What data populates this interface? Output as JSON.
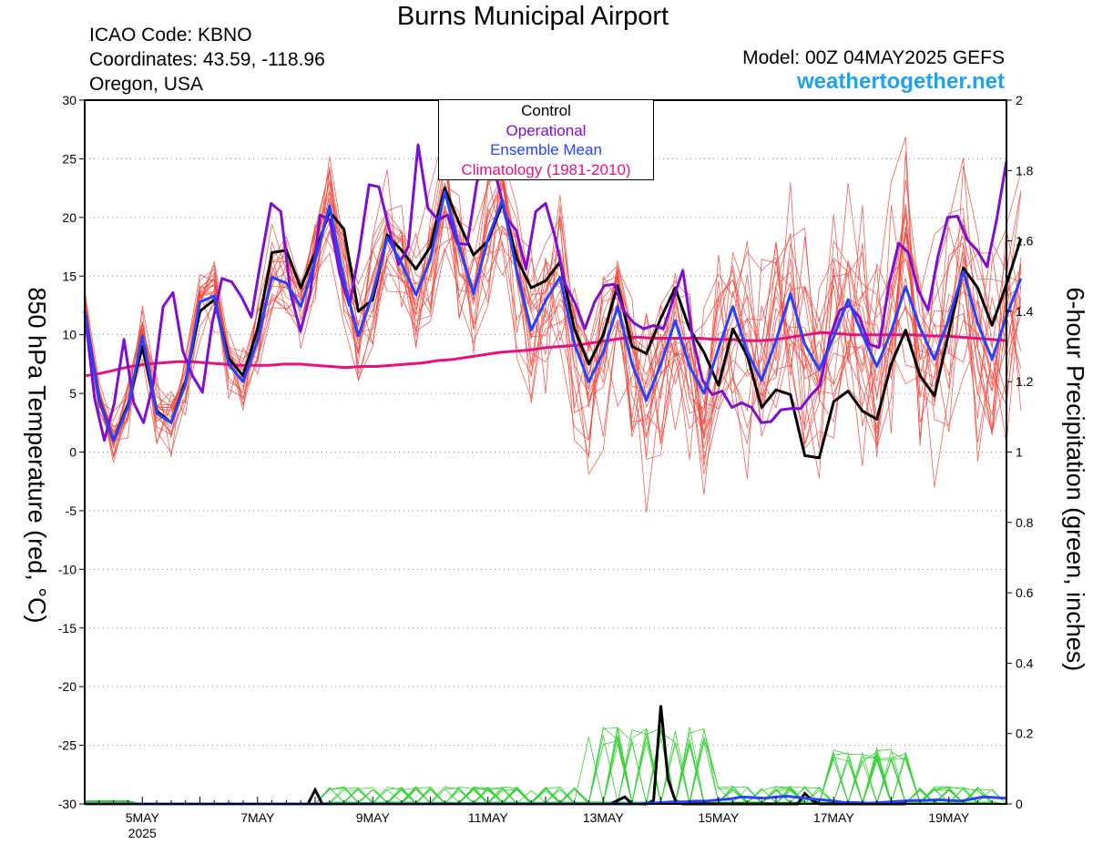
{
  "header": {
    "title": "Burns Municipal Airport",
    "icao": "ICAO Code: KBNO",
    "coordinates": "Coordinates: 43.59, -118.96",
    "location": "Oregon, USA",
    "model": "Model: 00Z 04MAY2025 GEFS",
    "site": "weathertogether.net"
  },
  "colors": {
    "control": "#000000",
    "operational": "#7f0ed2",
    "ensemble_mean": "#2442ff",
    "climatology": "#e8107f",
    "members_temp": "#f0453a",
    "members_precip": "#35d135",
    "site": "#1aa3f0"
  },
  "chart_data": {
    "type": "line",
    "title": "Burns Municipal Airport",
    "ylabel_left": "850 hPa Temperature (red, °C)",
    "ylabel_right": "6-hour Precipitation (green, inches)",
    "ylim_left": [
      -30,
      30
    ],
    "ylim_right": [
      0,
      2
    ],
    "yticks_left": [
      30,
      25,
      20,
      15,
      10,
      5,
      0,
      -5,
      -10,
      -15,
      -20,
      -25,
      -30
    ],
    "yticks_right": [
      "2",
      "1.8",
      "1.6",
      "1.4",
      "1.2",
      "1",
      "0.8",
      "0.6",
      "0.4",
      "0.2",
      "0"
    ],
    "xlim_days": [
      4.0,
      20.0
    ],
    "xticks": [
      {
        "day": 5,
        "label": "5MAY",
        "sub": "2025"
      },
      {
        "day": 7,
        "label": "7MAY",
        "sub": ""
      },
      {
        "day": 9,
        "label": "9MAY",
        "sub": ""
      },
      {
        "day": 11,
        "label": "11MAY",
        "sub": ""
      },
      {
        "day": 13,
        "label": "13MAY",
        "sub": ""
      },
      {
        "day": 15,
        "label": "15MAY",
        "sub": ""
      },
      {
        "day": 17,
        "label": "17MAY",
        "sub": ""
      },
      {
        "day": 19,
        "label": "19MAY",
        "sub": ""
      }
    ],
    "grid": "horizontal dotted",
    "legend": "top-center",
    "step_days": 0.25,
    "start_day": 4.0,
    "series": [
      {
        "name": "Control",
        "key": "control",
        "values": [
          12,
          4.5,
          1,
          4,
          9,
          3.5,
          2.5,
          6,
          12,
          13,
          8,
          6.5,
          10.5,
          17,
          17.2,
          14,
          17,
          20.5,
          19,
          12,
          13,
          18.5,
          17.2,
          15.6,
          17.5,
          22.5,
          19.5,
          16.8,
          18,
          21.2,
          16.5,
          14,
          14.6,
          16.2,
          10.5,
          7.5,
          10,
          14.2,
          9,
          8.4,
          11.4,
          14,
          10.5,
          8.5,
          5.7,
          10.5,
          8.2,
          3.8,
          5.3,
          4.9,
          -0.3,
          -0.5,
          4.3,
          5.2,
          3.5,
          2.8,
          7.5,
          10.4,
          6.5,
          4.8,
          10.2,
          15.7,
          14,
          10.8,
          14.3,
          18.2
        ]
      },
      {
        "name": "Operational",
        "key": "operational",
        "values": [
          12,
          4.6,
          1,
          4.1,
          9.6,
          4.2,
          2.5,
          5.9,
          12.4,
          13.6,
          8.6,
          6.5,
          5.1,
          11,
          14.8,
          14.5,
          13.2,
          11.5,
          16.5,
          21.2,
          20.5,
          13.5,
          10.3,
          13.5,
          20.2,
          19.8,
          15.2,
          12.5,
          17.1,
          22.8,
          22.6,
          19.2,
          16,
          17.5,
          26.2,
          20.8,
          19.8,
          20.2,
          17.8,
          17.7,
          23,
          24.9,
          23.3,
          20,
          18.9,
          15.6,
          20.5,
          21.2,
          18.2,
          14.3,
          12.7,
          10.5,
          12.8,
          14.2,
          14.3,
          12,
          11,
          10.5,
          10.8,
          10.5,
          13,
          15.5,
          9.7,
          6.1,
          4.9,
          5.2,
          3.8,
          4.2,
          3.8,
          2.5,
          2.6,
          3.6,
          3.7,
          3.7,
          4.8,
          5.7,
          9.8,
          12.1,
          12.5,
          11.5,
          9.2,
          8.9,
          14.2,
          17.8,
          17,
          13.8,
          12.1,
          16.6,
          20,
          20.1,
          18.1,
          17.2,
          15.8,
          19.8,
          24.8
        ]
      },
      {
        "name": "Ensemble Mean",
        "key": "ensemble_mean",
        "values": [
          12,
          4.4,
          1,
          3.8,
          9.9,
          3.3,
          2.5,
          5.8,
          12.8,
          13.3,
          7.5,
          6,
          9.5,
          14.9,
          14.4,
          12.4,
          16.3,
          21,
          14.6,
          9.9,
          13.5,
          18.3,
          16.1,
          13.4,
          16.4,
          22.2,
          17.5,
          13.5,
          18.2,
          21.5,
          15.4,
          10.4,
          12.9,
          14.9,
          9.2,
          6,
          8.5,
          12.4,
          7.5,
          4.4,
          7.5,
          11.2,
          7.3,
          5,
          8.8,
          12.4,
          8.5,
          6.1,
          9.5,
          13.5,
          9.2,
          7,
          9.8,
          13,
          10,
          7.3,
          10.3,
          14.1,
          10.6,
          7.9,
          11.4,
          15.4,
          11,
          7.9,
          11.6,
          14.8
        ]
      },
      {
        "name": "Climatology (1981-2010)",
        "key": "climatology",
        "values": [
          6.5,
          6.7,
          7,
          7.3,
          7.5,
          7.6,
          7.7,
          7.7,
          7.6,
          7.5,
          7.4,
          7.4,
          7.4,
          7.5,
          7.5,
          7.4,
          7.3,
          7.2,
          7.3,
          7.3,
          7.4,
          7.5,
          7.6,
          7.8,
          7.9,
          8.1,
          8.3,
          8.5,
          8.6,
          8.7,
          8.9,
          9,
          9.1,
          9.3,
          9.5,
          9.7,
          9.8,
          9.7,
          9.7,
          9.7,
          9.7,
          9.6,
          9.6,
          9.5,
          9.5,
          9.6,
          9.8,
          10,
          10.2,
          10.1,
          10,
          10,
          10,
          10,
          10,
          9.9,
          9.9,
          9.8,
          9.7,
          9.6,
          9.5
        ]
      }
    ],
    "precip_series": [
      {
        "key": "control",
        "values": [
          0,
          0,
          0,
          0,
          0,
          0,
          0,
          0,
          0,
          0,
          0,
          0,
          0,
          0,
          0,
          0,
          0,
          0,
          0,
          0,
          0,
          0,
          0,
          0,
          0,
          0,
          0,
          0,
          0,
          0,
          0,
          0,
          0.04,
          0,
          0,
          0,
          0,
          0,
          0,
          0,
          0,
          0,
          0,
          0,
          0,
          0,
          0,
          0,
          0,
          0,
          0,
          0,
          0,
          0,
          0,
          0,
          0,
          0,
          0,
          0,
          0,
          0,
          0,
          0,
          0,
          0,
          0,
          0,
          0,
          0,
          0,
          0,
          0,
          0,
          0.01,
          0.02,
          0,
          0,
          0,
          0.01,
          0.28,
          0.07,
          0.01,
          0,
          0,
          0,
          0,
          0,
          0,
          0,
          0,
          0,
          0,
          0,
          0,
          0,
          0,
          0,
          0,
          0,
          0.03,
          0.01,
          0,
          0,
          0,
          0,
          0,
          0,
          0,
          0,
          0,
          0,
          0,
          0,
          0
        ]
      },
      {
        "key": "ensemble_mean",
        "values": [
          0,
          0,
          0,
          0,
          0,
          0,
          0,
          0,
          0,
          0,
          0,
          0,
          0,
          0,
          0,
          0,
          0,
          0,
          0,
          0,
          0,
          0,
          0,
          0,
          0,
          0,
          0,
          0,
          0,
          0,
          0,
          0,
          0,
          0,
          0,
          0,
          0,
          0,
          0,
          0,
          0,
          0,
          0,
          0,
          0,
          0,
          0,
          0,
          0,
          0.002,
          0.004,
          0.006,
          0.006,
          0.008,
          0.008,
          0.012,
          0.014,
          0.02,
          0.018,
          0.016,
          0.02,
          0.022,
          0.018,
          0.014,
          0.012,
          0.008,
          0.004,
          0.004,
          0.002,
          0.004,
          0.006,
          0.008,
          0.01,
          0.01,
          0.012,
          0.01,
          0.008,
          0.014,
          0.02,
          0.018,
          0.016
        ]
      }
    ]
  }
}
